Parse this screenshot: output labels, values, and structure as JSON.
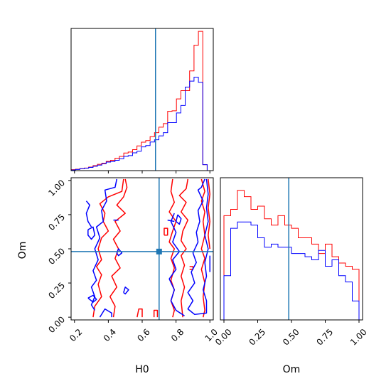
{
  "colors": {
    "series_a": "#ff0000",
    "series_b": "#0000ff",
    "truth": "#1f77b4",
    "axes": "#000000"
  },
  "chart_data": [
    {
      "type": "histogram",
      "panel": "H0",
      "bin_edges": [
        0.2,
        0.226,
        0.252,
        0.278,
        0.304,
        0.33,
        0.356,
        0.382,
        0.408,
        0.434,
        0.46,
        0.486,
        0.512,
        0.538,
        0.564,
        0.59,
        0.616,
        0.642,
        0.668,
        0.694,
        0.72,
        0.746,
        0.772,
        0.798,
        0.824,
        0.85,
        0.876,
        0.902,
        0.928,
        0.954,
        0.98,
        1.006
      ],
      "series": [
        {
          "values": [
            0.5,
            0.7,
            1,
            1.3,
            1.8,
            2.5,
            3.2,
            3.8,
            4.7,
            5.2,
            6.3,
            7.2,
            8.9,
            9.4,
            10.6,
            12.5,
            14.4,
            15.2,
            17.2,
            19.2,
            22,
            23.8,
            30,
            30.3,
            36.3,
            40.5,
            40.5,
            50.5,
            63.5,
            70.5,
            3
          ]
        },
        {
          "values": [
            0.3,
            0.6,
            1,
            1.2,
            1.6,
            2.2,
            2.8,
            3.5,
            4.3,
            4.6,
            5.2,
            6,
            7.2,
            7.6,
            9,
            9.8,
            12,
            12.7,
            14.5,
            15.6,
            17.6,
            19.2,
            24.3,
            24.3,
            29.2,
            33,
            42.3,
            45.3,
            47.3,
            44.7,
            3
          ]
        }
      ],
      "max_value": 72,
      "truth_x": 0.7
    },
    {
      "type": "histogram",
      "panel": "Om",
      "bin_edges": [
        0,
        0.05,
        0.1,
        0.15,
        0.2,
        0.25,
        0.3,
        0.35,
        0.4,
        0.45,
        0.5,
        0.55,
        0.6,
        0.65,
        0.7,
        0.75,
        0.8,
        0.85,
        0.9,
        0.95,
        1.0
      ],
      "series": [
        {
          "values": [
            33,
            35,
            41,
            39,
            35,
            36,
            32,
            30,
            33,
            30,
            29,
            26,
            26,
            24,
            21,
            24,
            20,
            18,
            17,
            16
          ]
        },
        {
          "values": [
            14,
            29,
            31,
            31,
            30,
            26,
            23,
            24,
            23,
            23,
            21,
            21,
            20,
            19,
            22,
            17,
            19,
            14,
            12,
            6
          ]
        }
      ],
      "max_value": 45,
      "truth_x": 0.48
    },
    {
      "type": "contour",
      "panel": "H0-Om",
      "xlim": [
        0.18,
        1.02
      ],
      "ylim": [
        -0.02,
        1.02
      ],
      "truth": [
        0.7,
        0.48
      ],
      "contours": [
        {
          "series": 0,
          "points": [
            [
              0.49,
              1.01
            ],
            [
              0.48,
              0.92
            ],
            [
              0.4,
              0.88
            ],
            [
              0.35,
              0.83
            ],
            [
              0.38,
              0.76
            ],
            [
              0.37,
              0.7
            ],
            [
              0.4,
              0.63
            ],
            [
              0.36,
              0.58
            ],
            [
              0.34,
              0.5
            ],
            [
              0.36,
              0.42
            ],
            [
              0.33,
              0.37
            ],
            [
              0.36,
              0.31
            ],
            [
              0.34,
              0.24
            ],
            [
              0.36,
              0.15
            ],
            [
              0.32,
              0.08
            ],
            [
              0.31,
              0.0
            ]
          ]
        },
        {
          "series": 0,
          "points": [
            [
              0.43,
              0.0
            ],
            [
              0.44,
              0.08
            ],
            [
              0.41,
              0.15
            ],
            [
              0.45,
              0.22
            ],
            [
              0.42,
              0.3
            ],
            [
              0.47,
              0.36
            ],
            [
              0.44,
              0.43
            ],
            [
              0.46,
              0.5
            ],
            [
              0.43,
              0.57
            ],
            [
              0.47,
              0.63
            ],
            [
              0.44,
              0.7
            ],
            [
              0.5,
              0.76
            ],
            [
              0.45,
              0.82
            ],
            [
              0.49,
              0.88
            ],
            [
              0.51,
              0.95
            ],
            [
              0.5,
              1.01
            ]
          ]
        },
        {
          "series": 0,
          "points": [
            [
              0.67,
              0.0
            ],
            [
              0.67,
              0.05
            ],
            [
              0.69,
              0.05
            ],
            [
              0.69,
              0.0
            ]
          ]
        },
        {
          "series": 0,
          "points": [
            [
              0.57,
              0.0
            ],
            [
              0.58,
              0.06
            ],
            [
              0.6,
              0.06
            ],
            [
              0.6,
              0.0
            ]
          ]
        },
        {
          "series": 0,
          "points": [
            [
              0.87,
              1.01
            ],
            [
              0.86,
              0.94
            ],
            [
              0.82,
              0.89
            ],
            [
              0.86,
              0.84
            ],
            [
              0.83,
              0.77
            ],
            [
              0.87,
              0.71
            ],
            [
              0.84,
              0.63
            ],
            [
              0.83,
              0.56
            ],
            [
              0.86,
              0.5
            ],
            [
              0.83,
              0.45
            ],
            [
              0.85,
              0.38
            ],
            [
              0.83,
              0.3
            ],
            [
              0.85,
              0.22
            ],
            [
              0.83,
              0.12
            ],
            [
              0.84,
              0.0
            ]
          ]
        },
        {
          "series": 0,
          "points": [
            [
              0.78,
              1.01
            ],
            [
              0.77,
              0.92
            ],
            [
              0.79,
              0.84
            ],
            [
              0.76,
              0.77
            ],
            [
              0.8,
              0.7
            ],
            [
              0.78,
              0.63
            ],
            [
              0.76,
              0.55
            ],
            [
              0.79,
              0.5
            ],
            [
              0.77,
              0.43
            ],
            [
              0.79,
              0.36
            ],
            [
              0.77,
              0.27
            ],
            [
              0.79,
              0.2
            ],
            [
              0.77,
              0.12
            ],
            [
              0.79,
              0.05
            ],
            [
              0.78,
              0.0
            ]
          ]
        },
        {
          "series": 0,
          "points": [
            [
              0.95,
              1.01
            ],
            [
              0.97,
              0.92
            ],
            [
              0.95,
              0.85
            ],
            [
              0.97,
              0.77
            ],
            [
              0.96,
              0.7
            ],
            [
              0.97,
              0.6
            ],
            [
              0.95,
              0.5
            ],
            [
              0.97,
              0.43
            ],
            [
              0.95,
              0.35
            ],
            [
              0.97,
              0.25
            ],
            [
              0.96,
              0.15
            ],
            [
              0.97,
              0.05
            ],
            [
              0.96,
              0.0
            ]
          ]
        },
        {
          "series": 0,
          "points": [
            [
              0.99,
              1.01
            ],
            [
              1.0,
              0.9
            ],
            [
              0.99,
              0.8
            ],
            [
              1.0,
              0.7
            ],
            [
              0.99,
              0.6
            ],
            [
              1.0,
              0.5
            ]
          ]
        },
        {
          "series": 0,
          "points": [
            [
              0.73,
              0.6
            ],
            [
              0.73,
              0.65
            ],
            [
              0.75,
              0.65
            ],
            [
              0.75,
              0.6
            ],
            [
              0.73,
              0.6
            ]
          ]
        },
        {
          "series": 0,
          "points": [
            [
              0.88,
              0.37
            ],
            [
              0.9,
              0.37
            ],
            [
              0.9,
              0.35
            ],
            [
              0.88,
              0.35
            ]
          ]
        },
        {
          "series": 1,
          "points": [
            [
              0.45,
              1.01
            ],
            [
              0.44,
              0.95
            ],
            [
              0.38,
              0.93
            ],
            [
              0.39,
              0.85
            ],
            [
              0.36,
              0.78
            ],
            [
              0.37,
              0.7
            ],
            [
              0.33,
              0.66
            ],
            [
              0.35,
              0.58
            ],
            [
              0.32,
              0.5
            ],
            [
              0.34,
              0.42
            ],
            [
              0.31,
              0.34
            ],
            [
              0.33,
              0.27
            ],
            [
              0.3,
              0.22
            ],
            [
              0.32,
              0.15
            ],
            [
              0.3,
              0.09
            ],
            [
              0.32,
              0.05
            ]
          ]
        },
        {
          "series": 1,
          "points": [
            [
              0.27,
              0.85
            ],
            [
              0.29,
              0.82
            ],
            [
              0.27,
              0.76
            ],
            [
              0.28,
              0.7
            ],
            [
              0.3,
              0.66
            ]
          ]
        },
        {
          "series": 1,
          "points": [
            [
              0.35,
              0.0
            ],
            [
              0.38,
              0.06
            ],
            [
              0.42,
              0.03
            ],
            [
              0.42,
              0.0
            ]
          ]
        },
        {
          "series": 1,
          "points": [
            [
              0.28,
              0.14
            ],
            [
              0.31,
              0.16
            ],
            [
              0.33,
              0.13
            ],
            [
              0.31,
              0.11
            ],
            [
              0.28,
              0.14
            ]
          ]
        },
        {
          "series": 1,
          "points": [
            [
              0.28,
              0.64
            ],
            [
              0.31,
              0.66
            ],
            [
              0.32,
              0.6
            ],
            [
              0.3,
              0.57
            ],
            [
              0.28,
              0.6
            ],
            [
              0.28,
              0.64
            ]
          ]
        },
        {
          "series": 1,
          "points": [
            [
              0.45,
              0.47
            ],
            [
              0.46,
              0.5
            ],
            [
              0.48,
              0.47
            ],
            [
              0.46,
              0.45
            ],
            [
              0.45,
              0.47
            ]
          ]
        },
        {
          "series": 1,
          "points": [
            [
              0.49,
              0.18
            ],
            [
              0.5,
              0.22
            ],
            [
              0.52,
              0.2
            ],
            [
              0.5,
              0.17
            ],
            [
              0.49,
              0.18
            ]
          ]
        },
        {
          "series": 1,
          "points": [
            [
              0.43,
              0.71
            ],
            [
              0.46,
              0.71
            ]
          ]
        },
        {
          "series": 1,
          "points": [
            [
              0.97,
              1.01
            ],
            [
              0.95,
              0.95
            ],
            [
              0.93,
              0.93
            ],
            [
              0.96,
              0.85
            ],
            [
              0.93,
              0.78
            ],
            [
              0.94,
              0.7
            ],
            [
              0.92,
              0.62
            ],
            [
              0.93,
              0.55
            ],
            [
              0.9,
              0.47
            ],
            [
              0.92,
              0.4
            ],
            [
              0.89,
              0.33
            ],
            [
              0.91,
              0.25
            ],
            [
              0.87,
              0.18
            ],
            [
              0.9,
              0.12
            ],
            [
              0.87,
              0.06
            ],
            [
              0.91,
              0.02
            ],
            [
              0.98,
              0.03
            ],
            [
              0.98,
              0.12
            ],
            [
              0.96,
              0.2
            ],
            [
              0.98,
              0.3
            ],
            [
              0.97,
              0.4
            ],
            [
              0.99,
              0.5
            ],
            [
              0.97,
              0.6
            ],
            [
              0.99,
              0.7
            ],
            [
              0.98,
              0.8
            ],
            [
              0.99,
              0.9
            ],
            [
              0.98,
              1.01
            ]
          ]
        },
        {
          "series": 1,
          "points": [
            [
              0.79,
              0.76
            ],
            [
              0.77,
              0.7
            ],
            [
              0.8,
              0.62
            ],
            [
              0.78,
              0.55
            ],
            [
              0.82,
              0.48
            ],
            [
              0.78,
              0.42
            ],
            [
              0.8,
              0.35
            ],
            [
              0.76,
              0.28
            ],
            [
              0.79,
              0.2
            ],
            [
              0.77,
              0.12
            ],
            [
              0.8,
              0.05
            ],
            [
              0.85,
              0.01
            ]
          ]
        },
        {
          "series": 1,
          "points": [
            [
              0.75,
              0.71
            ],
            [
              0.79,
              0.7
            ]
          ]
        },
        {
          "series": 1,
          "points": [
            [
              0.81,
              0.75
            ],
            [
              0.83,
              0.72
            ],
            [
              0.82,
              0.68
            ],
            [
              0.8,
              0.7
            ],
            [
              0.81,
              0.75
            ]
          ]
        },
        {
          "series": 1,
          "points": [
            [
              1.0,
              0.45
            ],
            [
              1.0,
              0.33
            ]
          ]
        }
      ]
    }
  ],
  "axes": {
    "h0_ticks": [
      "0.2",
      "0.4",
      "0.6",
      "0.8",
      "1.0"
    ],
    "om_ticks": [
      "0.00",
      "0.25",
      "0.50",
      "0.75",
      "1.00"
    ],
    "h0_label": "H0",
    "om_label": "Om"
  }
}
